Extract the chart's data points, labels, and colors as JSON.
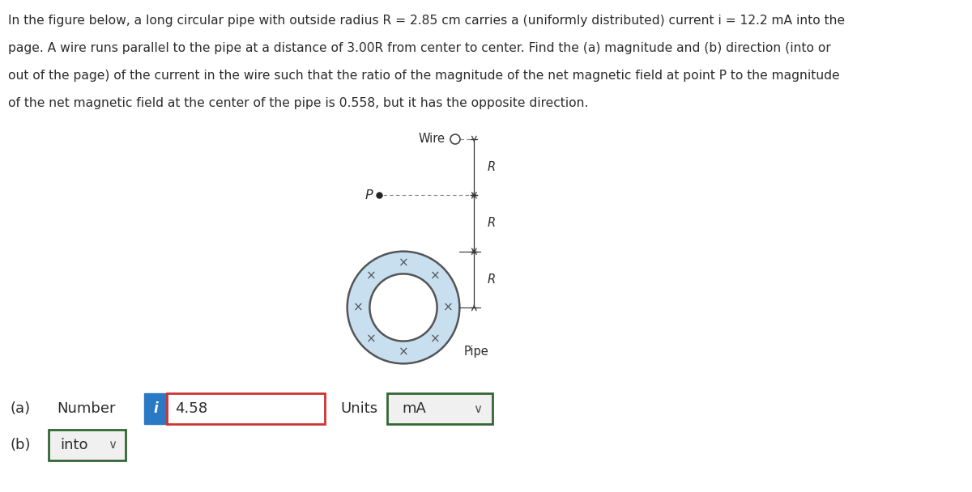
{
  "problem_text_line1": "In the figure below, a long circular pipe with outside radius R = 2.85 cm carries a (uniformly distributed) current i = 12.2 mA into the",
  "problem_text_line2": "page. A wire runs parallel to the pipe at a distance of 3.00R from center to center. Find the (a) magnitude and (b) direction (into or",
  "problem_text_line3": "out of the page) of the current in the wire such that the ratio of the magnitude of the net magnetic field at point P to the magnitude",
  "problem_text_line4": "of the net magnetic field at the center of the pipe is 0.558, but it has the opposite direction.",
  "background_color": "#ffffff",
  "text_color": "#2c2c2c",
  "pipe_fill_color": "#c8dff0",
  "pipe_edge_color": "#555555",
  "dim_line_color": "#333333",
  "wire_label": "Wire",
  "pipe_label": "Pipe",
  "P_label": "P",
  "R_label": "R",
  "answer_a_label": "(a)",
  "answer_a_number": "Number",
  "answer_a_value": "4.58",
  "answer_a_units_label": "Units",
  "answer_a_units_value": "mA",
  "answer_b_label": "(b)",
  "answer_b_value": "into",
  "i_label": "i",
  "i_box_color": "#2979c4",
  "answer_box_border_color_red": "#cc3333",
  "answer_box_border_color_green": "#336633",
  "chevron": "✔"
}
